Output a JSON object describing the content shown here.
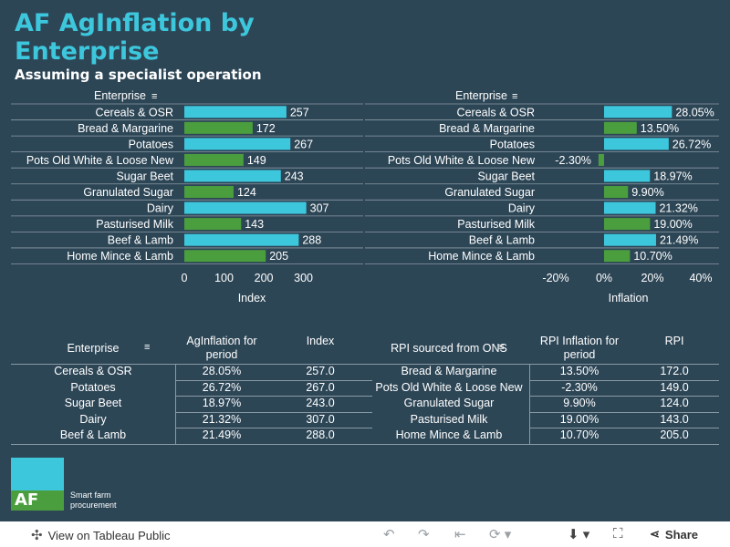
{
  "title": "AF AgInflation by Enterprise",
  "subtitle": "Assuming a specialist operation",
  "chart_data": [
    {
      "type": "bar",
      "orientation": "horizontal",
      "header": "Enterprise",
      "categories": [
        "Cereals & OSR",
        "Bread & Margarine",
        "Potatoes",
        "Pots Old White & Loose New",
        "Sugar Beet",
        "Granulated Sugar",
        "Dairy",
        "Pasturised Milk",
        "Beef & Lamb",
        "Home Mince & Lamb"
      ],
      "values": [
        257,
        172,
        267,
        149,
        243,
        124,
        307,
        143,
        288,
        205
      ],
      "labels": [
        "257",
        "172",
        "267",
        "149",
        "243",
        "124",
        "307",
        "143",
        "288",
        "205"
      ],
      "colors": [
        "#3dc7dd",
        "#4a9e3e",
        "#3dc7dd",
        "#4a9e3e",
        "#3dc7dd",
        "#4a9e3e",
        "#3dc7dd",
        "#4a9e3e",
        "#3dc7dd",
        "#4a9e3e"
      ],
      "xlabel": "Index",
      "xlim": [
        0,
        340
      ],
      "ticks": [
        0,
        100,
        200,
        300
      ],
      "tick_labels": [
        "0",
        "100",
        "200",
        "300"
      ],
      "grid": false
    },
    {
      "type": "bar",
      "orientation": "horizontal",
      "header": "Enterprise",
      "categories": [
        "Cereals & OSR",
        "Bread & Margarine",
        "Potatoes",
        "Pots Old White & Loose New",
        "Sugar Beet",
        "Granulated Sugar",
        "Dairy",
        "Pasturised Milk",
        "Beef & Lamb",
        "Home Mince & Lamb"
      ],
      "values": [
        28.05,
        13.5,
        26.72,
        -2.3,
        18.97,
        9.9,
        21.32,
        19.0,
        21.49,
        10.7
      ],
      "labels": [
        "28.05%",
        "13.50%",
        "26.72%",
        "-2.30%",
        "18.97%",
        "9.90%",
        "21.32%",
        "19.00%",
        "21.49%",
        "10.70%"
      ],
      "colors": [
        "#3dc7dd",
        "#4a9e3e",
        "#3dc7dd",
        "#4a9e3e",
        "#3dc7dd",
        "#4a9e3e",
        "#3dc7dd",
        "#4a9e3e",
        "#3dc7dd",
        "#4a9e3e"
      ],
      "xlabel": "Inflation",
      "xlim": [
        -20,
        40
      ],
      "ticks": [
        -20,
        0,
        20,
        40
      ],
      "tick_labels": [
        "-20%",
        "0%",
        "20%",
        "40%"
      ],
      "grid": false
    }
  ],
  "tables": {
    "left": {
      "headers": [
        "Enterprise",
        "AgInflation for period",
        "Index"
      ],
      "rows": [
        [
          "Cereals & OSR",
          "28.05%",
          "257.0"
        ],
        [
          "Potatoes",
          "26.72%",
          "267.0"
        ],
        [
          "Sugar Beet",
          "18.97%",
          "243.0"
        ],
        [
          "Dairy",
          "21.32%",
          "307.0"
        ],
        [
          "Beef & Lamb",
          "21.49%",
          "288.0"
        ]
      ]
    },
    "right": {
      "headers": [
        "RPI sourced from ONS",
        "RPI Inflation for period",
        "RPI"
      ],
      "rows": [
        [
          "Bread & Margarine",
          "13.50%",
          "172.0"
        ],
        [
          "Pots Old White & Loose New",
          "-2.30%",
          "149.0"
        ],
        [
          "Granulated Sugar",
          "9.90%",
          "124.0"
        ],
        [
          "Pasturised Milk",
          "19.00%",
          "143.0"
        ],
        [
          "Home Mince & Lamb",
          "10.70%",
          "205.0"
        ]
      ]
    }
  },
  "logo": {
    "mark": "AF",
    "tagline": "Smart farm procurement"
  },
  "footer": {
    "view_label": "View on Tableau Public",
    "share_label": "Share"
  },
  "icons": [
    "sort-icon",
    "tableau-logo-icon",
    "undo-icon",
    "redo-icon",
    "revert-icon",
    "refresh-icon",
    "download-icon",
    "fullscreen-icon",
    "share-icon"
  ]
}
